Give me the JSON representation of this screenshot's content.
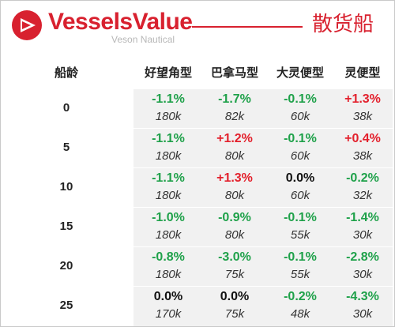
{
  "header": {
    "brand": "VesselsValue",
    "brand_sub": "Veson Nautical",
    "title": "散货船",
    "accent_color": "#d8212f",
    "logo_icon": "vesselsvalue-logo-icon"
  },
  "table": {
    "age_header": "船龄",
    "columns": [
      "好望角型",
      "巴拿马型",
      "大灵便型",
      "灵便型"
    ],
    "rows": [
      {
        "age": "0",
        "cells": [
          {
            "chg": "-1.1%",
            "val": "180k"
          },
          {
            "chg": "-1.7%",
            "val": "82k"
          },
          {
            "chg": "-0.1%",
            "val": "60k"
          },
          {
            "chg": "+1.3%",
            "val": "38k"
          }
        ]
      },
      {
        "age": "5",
        "cells": [
          {
            "chg": "-1.1%",
            "val": "180k"
          },
          {
            "chg": "+1.2%",
            "val": "80k"
          },
          {
            "chg": "-0.1%",
            "val": "60k"
          },
          {
            "chg": "+0.4%",
            "val": "38k"
          }
        ]
      },
      {
        "age": "10",
        "cells": [
          {
            "chg": "-1.1%",
            "val": "180k"
          },
          {
            "chg": "+1.3%",
            "val": "80k"
          },
          {
            "chg": "0.0%",
            "val": "60k"
          },
          {
            "chg": "-0.2%",
            "val": "32k"
          }
        ]
      },
      {
        "age": "15",
        "cells": [
          {
            "chg": "-1.0%",
            "val": "180k"
          },
          {
            "chg": "-0.9%",
            "val": "80k"
          },
          {
            "chg": "-0.1%",
            "val": "55k"
          },
          {
            "chg": "-1.4%",
            "val": "30k"
          }
        ]
      },
      {
        "age": "20",
        "cells": [
          {
            "chg": "-0.8%",
            "val": "180k"
          },
          {
            "chg": "-3.0%",
            "val": "75k"
          },
          {
            "chg": "-0.1%",
            "val": "55k"
          },
          {
            "chg": "-2.8%",
            "val": "30k"
          }
        ]
      },
      {
        "age": "25",
        "cells": [
          {
            "chg": "0.0%",
            "val": "170k"
          },
          {
            "chg": "0.0%",
            "val": "75k"
          },
          {
            "chg": "-0.2%",
            "val": "48k"
          },
          {
            "chg": "-4.3%",
            "val": "30k"
          }
        ]
      }
    ],
    "colors": {
      "negative": "#1fa14a",
      "positive": "#e3202c",
      "zero": "#111111"
    }
  }
}
